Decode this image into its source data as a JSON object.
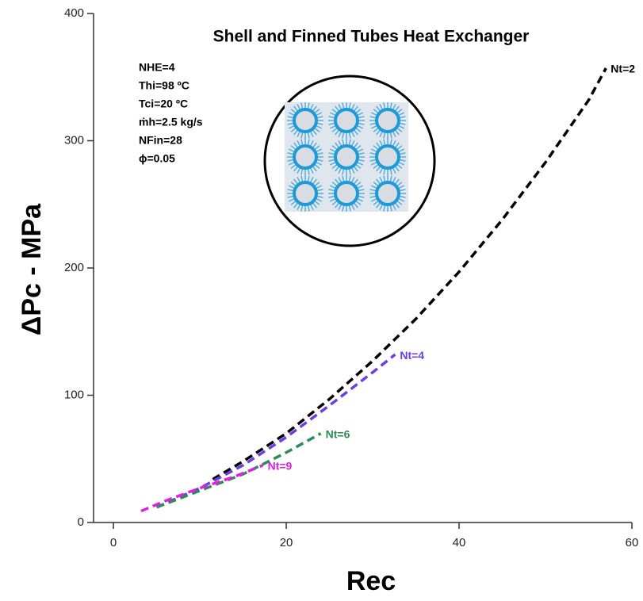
{
  "chart_data": {
    "type": "line",
    "title": "Shell and Finned Tubes Heat Exchanger",
    "x_label": "Rec",
    "y_label": "ΔPc - MPa",
    "annotations": [
      "NHE=4",
      "Thi=98 ºC",
      "Tci=20 ºC",
      "ṁh=2.5 kg/s",
      "NFin=28",
      "ϕ=0.05"
    ],
    "xlim": [
      -2.3,
      60
    ],
    "ylim": [
      0,
      400
    ],
    "xticks": [
      0,
      20,
      40,
      60
    ],
    "yticks": [
      0,
      100,
      200,
      300,
      400
    ],
    "series": [
      {
        "name": "Nt=2",
        "color": "#000000",
        "x": [
          11.5,
          15,
          20,
          25,
          30,
          35,
          40,
          45,
          50,
          55,
          57
        ],
        "values": [
          34,
          48,
          70,
          97,
          127,
          160,
          197,
          238,
          283,
          332,
          357
        ]
      },
      {
        "name": "Nt=4",
        "color": "#6a3fe0",
        "x": [
          5,
          10,
          15,
          20,
          25,
          30,
          32.6
        ],
        "values": [
          12,
          27,
          45,
          67,
          92,
          118,
          132
        ]
      },
      {
        "name": "Nt=6",
        "color": "#2e8b57",
        "x": [
          5,
          10,
          15,
          20,
          24
        ],
        "values": [
          12,
          25,
          38,
          55,
          70
        ]
      },
      {
        "name": "Nt=9",
        "color": "#e020e0",
        "x": [
          3.2,
          6,
          10,
          14,
          17.3
        ],
        "values": [
          9,
          17,
          27,
          36,
          45
        ]
      }
    ]
  }
}
